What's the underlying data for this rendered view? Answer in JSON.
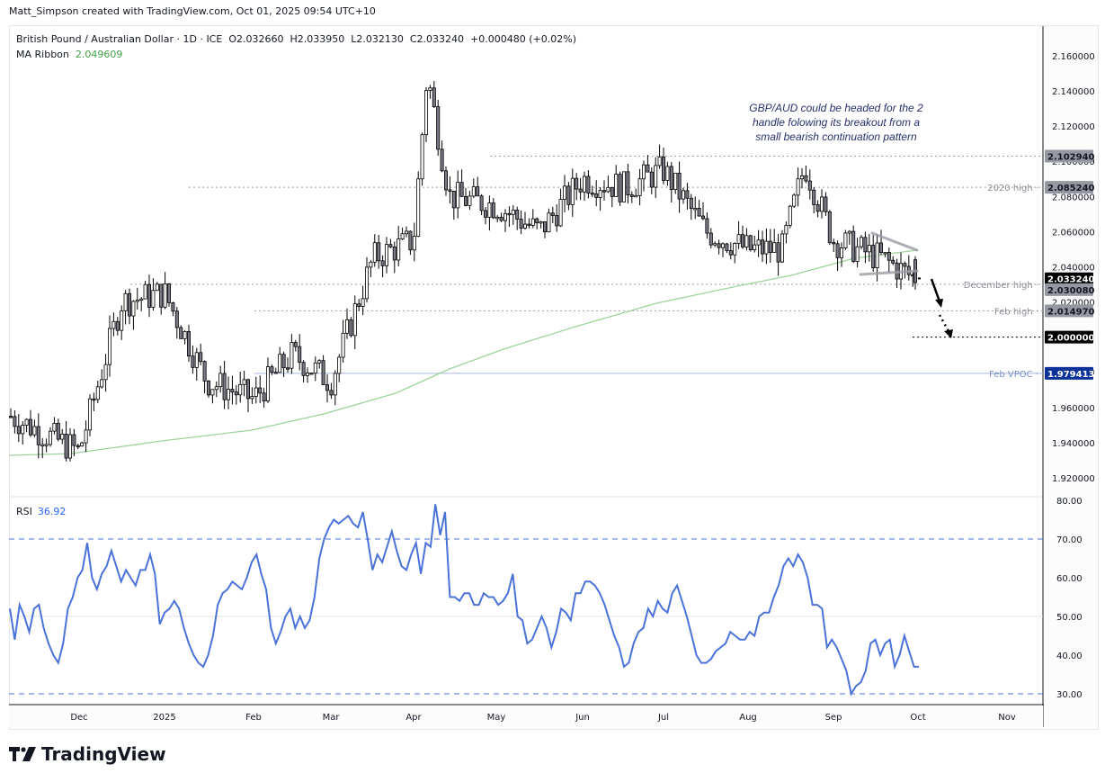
{
  "credit": "Matt_Simpson created with TradingView.com, Oct 01, 2025 09:54 UTC+10",
  "header": {
    "symbol": "British Pound / Australian Dollar · 1D · ICE",
    "open": "O2.032660",
    "high": "H2.033950",
    "low": "L2.032130",
    "close": "C2.033240",
    "change": "+0.000480 (+0.02%)",
    "ma_label": "MA Ribbon",
    "ma_value": "2.049609"
  },
  "annotation": [
    "GBP/AUD could be headed for the 2",
    "handle folowing its breakout from a",
    "small bearish continuation pattern"
  ],
  "rsi": {
    "label": "RSI",
    "value": "36.92"
  },
  "logo": "TradingView",
  "colors": {
    "rsi_line": "#4a72d8",
    "ma_line": "#9dd39c",
    "vpoc_line": "#a9b7db",
    "vpoc_badge": "#0c3299",
    "level_badge": "#9598a1",
    "last_badge": "#000000",
    "down_candle": "#787b86",
    "up_candle": "#ffffff"
  },
  "chart_data": [
    {
      "type": "candlestick",
      "title": "British Pound / Australian Dollar · 1D · ICE",
      "ylabel": "Price",
      "ylim": [
        1.91,
        2.17
      ],
      "y_ticks": [
        1.92,
        1.94,
        1.96,
        1.98,
        2.0,
        2.02,
        2.04,
        2.06,
        2.08,
        2.1,
        2.12,
        2.14,
        2.16
      ],
      "x_ticks": [
        "Dec",
        "2025",
        "Feb",
        "Mar",
        "Apr",
        "May",
        "Jun",
        "Jul",
        "Aug",
        "Sep",
        "Oct",
        "Nov"
      ],
      "last": {
        "open": 2.03266,
        "high": 2.03395,
        "low": 2.03213,
        "close": 2.03324,
        "change": 0.00048,
        "change_pct": 0.02
      },
      "ma_ribbon_last": 2.049609,
      "levels": [
        {
          "label": "",
          "value": 2.10294,
          "style": "dotted"
        },
        {
          "label": "2020 high",
          "value": 2.08524,
          "style": "dotted"
        },
        {
          "label": "December high",
          "value": 2.03008,
          "style": "dotted"
        },
        {
          "label": "Feb high",
          "value": 2.01497,
          "style": "dotted"
        },
        {
          "label": "",
          "value": 2.0,
          "style": "dotted-black"
        },
        {
          "label": "Feb VPOC",
          "value": 1.979413,
          "style": "solid-blue"
        }
      ],
      "price_badges": [
        "2.102940",
        "2.085240",
        "2.033240",
        "2.030080",
        "2.014970",
        "2.000000",
        "1.979413"
      ],
      "approx_close_path": {
        "x_month": [
          "Nov-mid",
          "Dec",
          "Dec-mid",
          "2025",
          "Jan-mid",
          "Feb",
          "Feb-mid",
          "Mar",
          "Mar-mid",
          "Apr",
          "Apr-7",
          "Apr-mid",
          "May",
          "May-mid",
          "Jun",
          "Jun-mid",
          "Jul",
          "Jul-mid",
          "Aug",
          "Aug-mid",
          "Aug-20",
          "Sep",
          "Sep-mid",
          "Sep-end"
        ],
        "close": [
          1.955,
          1.935,
          2.02,
          2.025,
          1.975,
          1.965,
          1.99,
          1.975,
          2.045,
          2.055,
          2.15,
          2.08,
          2.075,
          2.06,
          2.09,
          2.085,
          2.095,
          2.06,
          2.05,
          2.05,
          2.098,
          2.055,
          2.045,
          2.0332
        ]
      }
    },
    {
      "type": "line",
      "title": "RSI",
      "ylim": [
        28,
        80
      ],
      "y_ticks": [
        30,
        40,
        50,
        60,
        70,
        80
      ],
      "bands": [
        30,
        70
      ],
      "midline": 50,
      "last": 36.92,
      "values": [
        52,
        44,
        53,
        50,
        46,
        52,
        53,
        47,
        43,
        40,
        38,
        43,
        52,
        55,
        60,
        62,
        69,
        60,
        57,
        61,
        63,
        67,
        63,
        59,
        62,
        60,
        58,
        62,
        62,
        66,
        61,
        48,
        51,
        52,
        54,
        52,
        47,
        43,
        40,
        38,
        37,
        40,
        45,
        53,
        56,
        57,
        59,
        58,
        57,
        60,
        64,
        66,
        61,
        57,
        47,
        43,
        46,
        50,
        52,
        47,
        50,
        47,
        49,
        55,
        65,
        70,
        73,
        75,
        74,
        75,
        76,
        74,
        73,
        77,
        70,
        62,
        66,
        64,
        68,
        72,
        67,
        63,
        62,
        66,
        69,
        61,
        69,
        68,
        79,
        71,
        77,
        55,
        55,
        54,
        56,
        56,
        53,
        53,
        56,
        55,
        55,
        53,
        54,
        56,
        61,
        50,
        49,
        43,
        44,
        47,
        50,
        47,
        42,
        46,
        52,
        51,
        49,
        56,
        56,
        59,
        59,
        58,
        56,
        53,
        49,
        45,
        42,
        37,
        38,
        43,
        46,
        47,
        52,
        50,
        54,
        52,
        51,
        56,
        58,
        54,
        50,
        45,
        40,
        38,
        38,
        39,
        41,
        42,
        43,
        46,
        45,
        44,
        44,
        46,
        45,
        50,
        51,
        51,
        55,
        58,
        63,
        65,
        63,
        66,
        64,
        60,
        53,
        53,
        52,
        42,
        44,
        42,
        39,
        36,
        30,
        32,
        33,
        36,
        43,
        44,
        40,
        43,
        44,
        37,
        40,
        45,
        41,
        37,
        37
      ]
    }
  ]
}
